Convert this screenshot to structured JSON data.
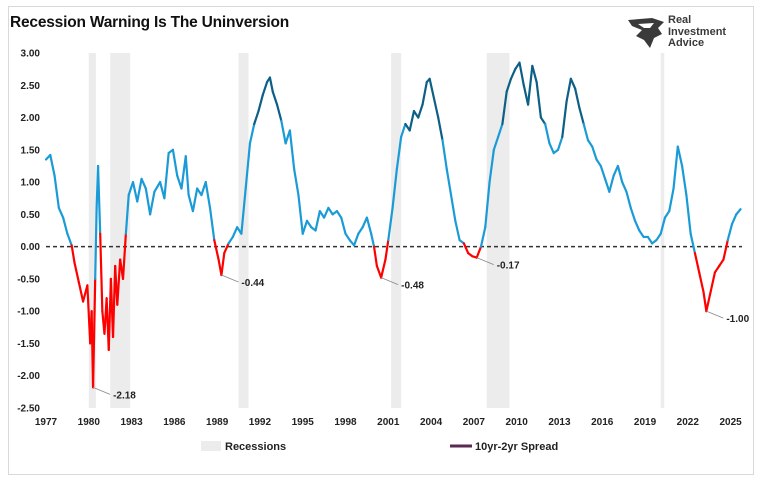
{
  "chart_data": {
    "type": "line",
    "title": "Recession Warning Is The Uninversion",
    "xlabel": "",
    "ylabel": "",
    "xlim": [
      1977,
      2025.8
    ],
    "ylim": [
      -2.5,
      3.0
    ],
    "yticks": [
      "3.00",
      "2.50",
      "2.00",
      "1.50",
      "1.00",
      "0.50",
      "0.00",
      "-0.50",
      "-1.00",
      "-1.50",
      "-2.00",
      "-2.50"
    ],
    "xticks": [
      "1977",
      "1980",
      "1983",
      "1986",
      "1989",
      "1992",
      "1995",
      "1998",
      "2001",
      "2004",
      "2007",
      "2010",
      "2013",
      "2016",
      "2019",
      "2022",
      "2025"
    ],
    "zero_line": "dashed",
    "legend_position": "bottom-center",
    "recessions": [
      {
        "start": 1980.0,
        "end": 1980.5
      },
      {
        "start": 1981.5,
        "end": 1982.9
      },
      {
        "start": 1990.5,
        "end": 1991.2
      },
      {
        "start": 2001.2,
        "end": 2001.9
      },
      {
        "start": 2007.9,
        "end": 2009.5
      },
      {
        "start": 2020.1,
        "end": 2020.35
      }
    ],
    "series": [
      {
        "name": "10yr-2yr Spread",
        "points": [
          [
            1977.0,
            1.35
          ],
          [
            1977.3,
            1.42
          ],
          [
            1977.6,
            1.1
          ],
          [
            1977.9,
            0.6
          ],
          [
            1978.2,
            0.45
          ],
          [
            1978.5,
            0.2
          ],
          [
            1978.8,
            0.02
          ],
          [
            1979.0,
            -0.25
          ],
          [
            1979.3,
            -0.55
          ],
          [
            1979.6,
            -0.85
          ],
          [
            1979.9,
            -0.6
          ],
          [
            1980.1,
            -1.5
          ],
          [
            1980.2,
            -1.0
          ],
          [
            1980.3,
            -2.18
          ],
          [
            1980.45,
            -0.5
          ],
          [
            1980.55,
            0.6
          ],
          [
            1980.65,
            1.25
          ],
          [
            1980.8,
            0.2
          ],
          [
            1980.95,
            -1.0
          ],
          [
            1981.1,
            -1.35
          ],
          [
            1981.25,
            -0.8
          ],
          [
            1981.4,
            -1.6
          ],
          [
            1981.55,
            -0.5
          ],
          [
            1981.7,
            -1.4
          ],
          [
            1981.85,
            -0.3
          ],
          [
            1982.0,
            -0.9
          ],
          [
            1982.2,
            -0.2
          ],
          [
            1982.4,
            -0.5
          ],
          [
            1982.6,
            0.2
          ],
          [
            1982.8,
            0.8
          ],
          [
            1983.1,
            1.0
          ],
          [
            1983.4,
            0.7
          ],
          [
            1983.7,
            1.05
          ],
          [
            1984.0,
            0.9
          ],
          [
            1984.3,
            0.5
          ],
          [
            1984.6,
            0.85
          ],
          [
            1985.0,
            1.0
          ],
          [
            1985.3,
            0.75
          ],
          [
            1985.6,
            1.45
          ],
          [
            1985.9,
            1.5
          ],
          [
            1986.2,
            1.1
          ],
          [
            1986.5,
            0.9
          ],
          [
            1986.8,
            1.4
          ],
          [
            1987.0,
            0.8
          ],
          [
            1987.3,
            0.55
          ],
          [
            1987.6,
            0.9
          ],
          [
            1987.9,
            0.8
          ],
          [
            1988.2,
            1.0
          ],
          [
            1988.5,
            0.6
          ],
          [
            1988.8,
            0.1
          ],
          [
            1989.1,
            -0.2
          ],
          [
            1989.3,
            -0.44
          ],
          [
            1989.5,
            -0.1
          ],
          [
            1989.8,
            0.05
          ],
          [
            1990.1,
            0.15
          ],
          [
            1990.4,
            0.3
          ],
          [
            1990.7,
            0.2
          ],
          [
            1991.0,
            0.9
          ],
          [
            1991.3,
            1.6
          ],
          [
            1991.6,
            1.9
          ],
          [
            1991.9,
            2.1
          ],
          [
            1992.2,
            2.35
          ],
          [
            1992.5,
            2.55
          ],
          [
            1992.7,
            2.62
          ],
          [
            1992.9,
            2.4
          ],
          [
            1993.2,
            2.2
          ],
          [
            1993.5,
            1.95
          ],
          [
            1993.8,
            1.6
          ],
          [
            1994.1,
            1.8
          ],
          [
            1994.4,
            1.2
          ],
          [
            1994.7,
            0.8
          ],
          [
            1995.0,
            0.2
          ],
          [
            1995.3,
            0.4
          ],
          [
            1995.6,
            0.3
          ],
          [
            1995.9,
            0.25
          ],
          [
            1996.2,
            0.55
          ],
          [
            1996.5,
            0.45
          ],
          [
            1996.8,
            0.6
          ],
          [
            1997.1,
            0.5
          ],
          [
            1997.4,
            0.55
          ],
          [
            1997.7,
            0.45
          ],
          [
            1998.0,
            0.2
          ],
          [
            1998.3,
            0.1
          ],
          [
            1998.6,
            0.02
          ],
          [
            1998.9,
            0.2
          ],
          [
            1999.2,
            0.3
          ],
          [
            1999.5,
            0.45
          ],
          [
            1999.8,
            0.2
          ],
          [
            2000.0,
            0.0
          ],
          [
            2000.2,
            -0.3
          ],
          [
            2000.5,
            -0.48
          ],
          [
            2000.8,
            -0.2
          ],
          [
            2001.0,
            0.1
          ],
          [
            2001.3,
            0.6
          ],
          [
            2001.6,
            1.2
          ],
          [
            2001.9,
            1.7
          ],
          [
            2002.2,
            1.9
          ],
          [
            2002.5,
            1.8
          ],
          [
            2002.8,
            2.1
          ],
          [
            2003.1,
            2.0
          ],
          [
            2003.4,
            2.2
          ],
          [
            2003.7,
            2.55
          ],
          [
            2003.9,
            2.6
          ],
          [
            2004.2,
            2.3
          ],
          [
            2004.5,
            2.0
          ],
          [
            2004.8,
            1.65
          ],
          [
            2005.1,
            1.2
          ],
          [
            2005.4,
            0.8
          ],
          [
            2005.7,
            0.4
          ],
          [
            2006.0,
            0.1
          ],
          [
            2006.3,
            0.05
          ],
          [
            2006.6,
            -0.1
          ],
          [
            2006.9,
            -0.15
          ],
          [
            2007.2,
            -0.17
          ],
          [
            2007.5,
            0.0
          ],
          [
            2007.8,
            0.3
          ],
          [
            2008.1,
            1.0
          ],
          [
            2008.4,
            1.5
          ],
          [
            2008.7,
            1.7
          ],
          [
            2009.0,
            1.9
          ],
          [
            2009.3,
            2.4
          ],
          [
            2009.6,
            2.6
          ],
          [
            2009.9,
            2.75
          ],
          [
            2010.2,
            2.85
          ],
          [
            2010.5,
            2.5
          ],
          [
            2010.8,
            2.2
          ],
          [
            2011.1,
            2.8
          ],
          [
            2011.4,
            2.55
          ],
          [
            2011.7,
            2.0
          ],
          [
            2012.0,
            1.9
          ],
          [
            2012.3,
            1.6
          ],
          [
            2012.6,
            1.45
          ],
          [
            2012.9,
            1.5
          ],
          [
            2013.2,
            1.7
          ],
          [
            2013.5,
            2.25
          ],
          [
            2013.8,
            2.6
          ],
          [
            2014.1,
            2.45
          ],
          [
            2014.4,
            2.15
          ],
          [
            2014.7,
            1.9
          ],
          [
            2015.0,
            1.65
          ],
          [
            2015.3,
            1.55
          ],
          [
            2015.6,
            1.35
          ],
          [
            2015.9,
            1.25
          ],
          [
            2016.2,
            1.05
          ],
          [
            2016.5,
            0.85
          ],
          [
            2016.8,
            1.1
          ],
          [
            2017.1,
            1.25
          ],
          [
            2017.4,
            1.0
          ],
          [
            2017.7,
            0.85
          ],
          [
            2018.0,
            0.6
          ],
          [
            2018.3,
            0.4
          ],
          [
            2018.6,
            0.25
          ],
          [
            2018.9,
            0.15
          ],
          [
            2019.2,
            0.15
          ],
          [
            2019.5,
            0.05
          ],
          [
            2019.8,
            0.1
          ],
          [
            2020.1,
            0.2
          ],
          [
            2020.4,
            0.45
          ],
          [
            2020.7,
            0.55
          ],
          [
            2021.0,
            0.9
          ],
          [
            2021.3,
            1.55
          ],
          [
            2021.6,
            1.25
          ],
          [
            2021.9,
            0.8
          ],
          [
            2022.2,
            0.2
          ],
          [
            2022.5,
            -0.1
          ],
          [
            2022.8,
            -0.4
          ],
          [
            2023.1,
            -0.7
          ],
          [
            2023.3,
            -1.0
          ],
          [
            2023.6,
            -0.7
          ],
          [
            2023.9,
            -0.4
          ],
          [
            2024.2,
            -0.3
          ],
          [
            2024.5,
            -0.2
          ],
          [
            2024.8,
            0.1
          ],
          [
            2025.1,
            0.35
          ],
          [
            2025.4,
            0.5
          ],
          [
            2025.7,
            0.58
          ]
        ]
      }
    ],
    "annotations": [
      {
        "x": 1980.3,
        "y": -2.18,
        "label": "-2.18"
      },
      {
        "x": 1989.3,
        "y": -0.44,
        "label": "-0.44"
      },
      {
        "x": 2000.5,
        "y": -0.48,
        "label": "-0.48"
      },
      {
        "x": 2007.2,
        "y": -0.17,
        "label": "-0.17"
      },
      {
        "x": 2023.3,
        "y": -1.0,
        "label": "-1.00"
      }
    ],
    "legend": {
      "recessions_label": "Recessions",
      "spread_label": "10yr-2yr Spread"
    },
    "colors": {
      "line_positive": "#1a9bd7",
      "line_dark": "#0d5f86",
      "line_negative": "#ff0000",
      "recession_band": "#ececec",
      "zero_line": "#333333",
      "legend_swatch": "#5a2a52"
    }
  },
  "logo": {
    "line1": "Real",
    "line2": "Investment",
    "line3": "Advice"
  }
}
